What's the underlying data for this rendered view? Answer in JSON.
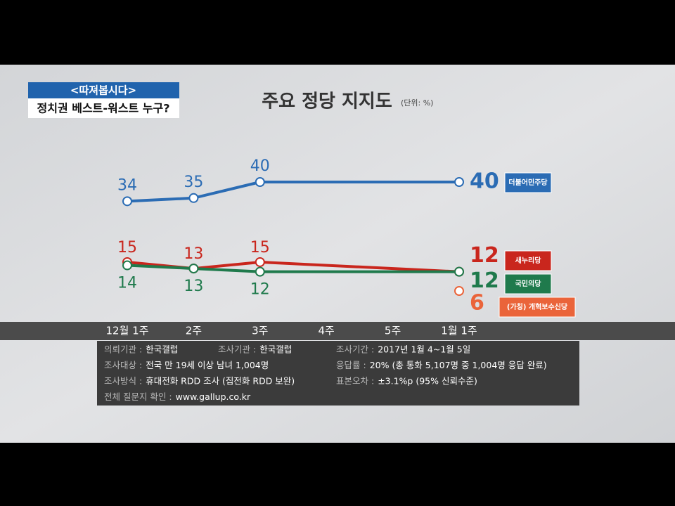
{
  "header": {
    "tag": "<따져봅시다>",
    "subtitle": "정치권 베스트-워스트 누구?"
  },
  "chart_data": {
    "type": "line",
    "title": "주요 정당 지지도",
    "unit": "(단위: %)",
    "categories": [
      "12월 1주",
      "2주",
      "3주",
      "4주",
      "5주",
      "1월 1주"
    ],
    "series": [
      {
        "name": "더불어민주당",
        "color": "#2b6cb4",
        "values": [
          34,
          35,
          40,
          null,
          null,
          40
        ]
      },
      {
        "name": "새누리당",
        "color": "#c9261d",
        "values": [
          15,
          13,
          15,
          null,
          null,
          12
        ]
      },
      {
        "name": "국민의당",
        "color": "#1f7a4c",
        "values": [
          14,
          13,
          12,
          null,
          null,
          12
        ]
      },
      {
        "name": "(가칭) 개혁보수신당",
        "color": "#ea643a",
        "values": [
          null,
          null,
          null,
          null,
          null,
          6
        ]
      }
    ]
  },
  "info": {
    "rows": [
      [
        {
          "label": "의뢰기관 :",
          "value": "한국갤럽"
        },
        {
          "label": "조사기관 :",
          "value": "한국갤럽"
        },
        {
          "label": "조사기간 :",
          "value": "2017년 1월 4~1월 5일"
        }
      ],
      [
        {
          "label": "조사대상 :",
          "value": "전국 만 19세 이상 남녀 1,004명"
        },
        {
          "label": "응답률 :",
          "value": "20% (총 통화 5,107명 중 1,004명 응답 완료)"
        }
      ],
      [
        {
          "label": "조사방식 :",
          "value": "휴대전화 RDD 조사 (집전화 RDD 보완)"
        },
        {
          "label": "표본오차 :",
          "value": "±3.1%p (95% 신뢰수준)"
        }
      ],
      [
        {
          "label": "전체 질문지 확인 :",
          "value": "www.gallup.co.kr"
        }
      ]
    ]
  }
}
